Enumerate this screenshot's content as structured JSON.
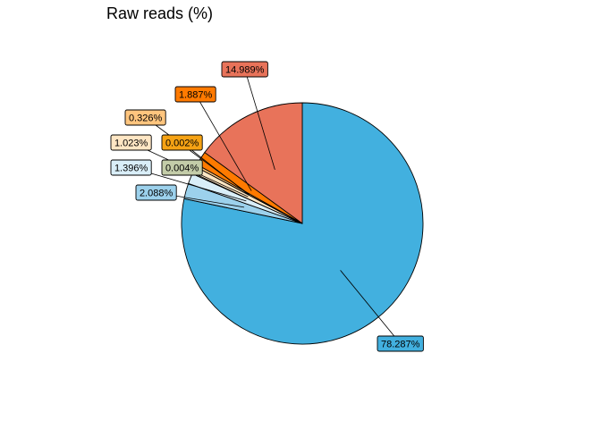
{
  "chart_data": {
    "type": "pie",
    "title": "Raw reads (%)",
    "slices": [
      {
        "label": "78.287%",
        "value": 78.287,
        "color": "#42B0DF"
      },
      {
        "label": "2.088%",
        "value": 2.088,
        "color": "#9CD1EC"
      },
      {
        "label": "1.396%",
        "value": 1.396,
        "color": "#D9EEF8"
      },
      {
        "label": "0.004%",
        "value": 0.004,
        "color": "#C3CCA8"
      },
      {
        "label": "1.023%",
        "value": 1.023,
        "color": "#FFE6C4"
      },
      {
        "label": "0.002%",
        "value": 0.002,
        "color": "#F5A214"
      },
      {
        "label": "0.326%",
        "value": 0.326,
        "color": "#FFC57E"
      },
      {
        "label": "1.887%",
        "value": 1.887,
        "color": "#FF7A00"
      },
      {
        "label": "14.989%",
        "value": 14.989,
        "color": "#E8735A"
      }
    ]
  }
}
